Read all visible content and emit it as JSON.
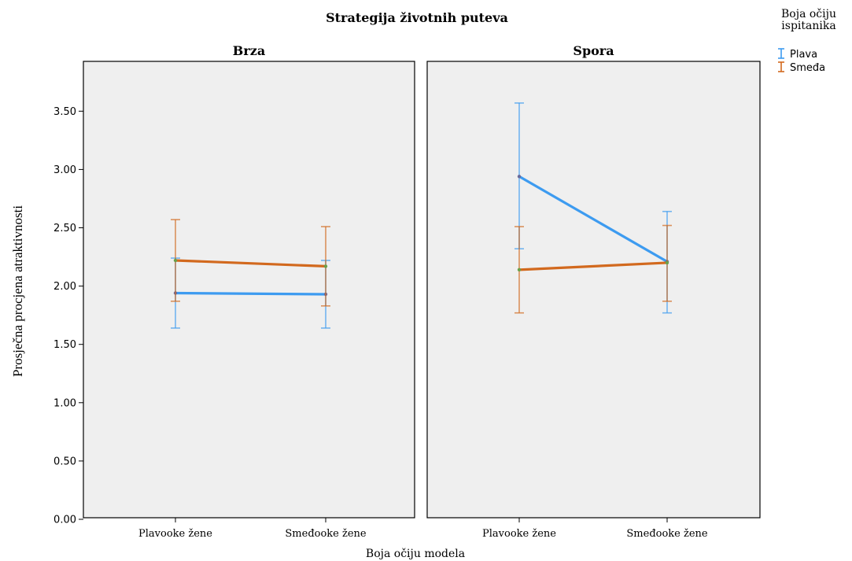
{
  "chart_data": {
    "type": "line",
    "title": "Strategija životnih puteva",
    "panels": [
      {
        "name": "Brza",
        "series": [
          {
            "name": "Plava",
            "mean": [
              1.94,
              1.93
            ],
            "ci_low": [
              1.64,
              1.64
            ],
            "ci_high": [
              2.24,
              2.22
            ]
          },
          {
            "name": "Smeđa",
            "mean": [
              2.22,
              2.17
            ],
            "ci_low": [
              1.87,
              1.83
            ],
            "ci_high": [
              2.57,
              2.51
            ]
          }
        ]
      },
      {
        "name": "Spora",
        "series": [
          {
            "name": "Plava",
            "mean": [
              2.94,
              2.21
            ],
            "ci_low": [
              2.32,
              1.77
            ],
            "ci_high": [
              3.57,
              2.64
            ]
          },
          {
            "name": "Smeđa",
            "mean": [
              2.14,
              2.2
            ],
            "ci_low": [
              1.77,
              1.87
            ],
            "ci_high": [
              2.51,
              2.52
            ]
          }
        ]
      }
    ],
    "categories": [
      "Plavooke žene",
      "Smeđooke žene"
    ],
    "xlabel": "Boja očiju modela",
    "ylabel": "Prosječna procjena atraktivnosti",
    "ylim": [
      0,
      3.85
    ],
    "yticks": [
      "0.00",
      "0.50",
      "1.00",
      "1.50",
      "2.00",
      "2.50",
      "3.00",
      "3.50"
    ],
    "legend": {
      "title_lines": [
        "Boja očiju",
        "ispitanika"
      ],
      "placement": "top-right",
      "items": [
        "Plava",
        "Smeđa"
      ]
    },
    "colors": {
      "Plava": "#3d9bf0",
      "Smeđa": "#d2691e",
      "panel_bg": "#efefef",
      "panel_border": "#000000"
    },
    "grid": false,
    "error_bars": "95% CI"
  }
}
